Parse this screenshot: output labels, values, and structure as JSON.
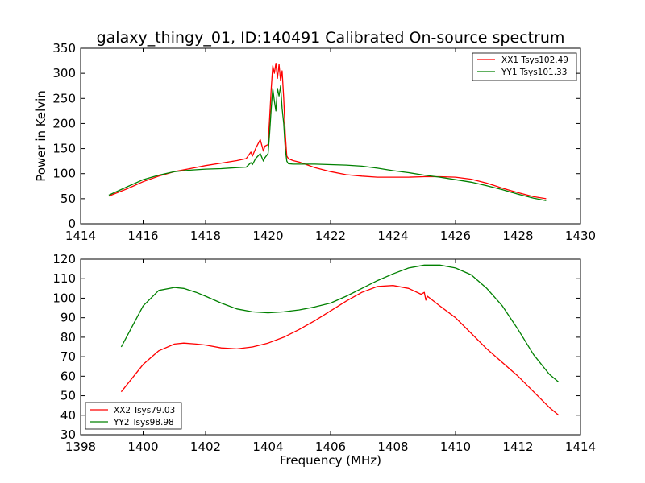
{
  "chart_data": [
    {
      "type": "line",
      "title": "galaxy_thingy_01, ID:140491 Calibrated On-source spectrum",
      "xlabel": "",
      "ylabel": "Power in Kelvin",
      "xlim": [
        1414,
        1430
      ],
      "ylim": [
        0,
        350
      ],
      "xticks": [
        1414,
        1416,
        1418,
        1420,
        1422,
        1424,
        1426,
        1428,
        1430
      ],
      "yticks": [
        0,
        50,
        100,
        150,
        200,
        250,
        300,
        350
      ],
      "legend_position": "top-right",
      "series": [
        {
          "name": "XX1 Tsys102.49",
          "color": "#ff0000",
          "x": [
            1414.9,
            1415.5,
            1416.0,
            1416.5,
            1417.0,
            1417.5,
            1418.0,
            1418.5,
            1419.0,
            1419.3,
            1419.45,
            1419.5,
            1419.6,
            1419.75,
            1419.85,
            1419.9,
            1420.0,
            1420.05,
            1420.1,
            1420.15,
            1420.2,
            1420.25,
            1420.3,
            1420.35,
            1420.4,
            1420.45,
            1420.5,
            1420.55,
            1420.6,
            1420.65,
            1420.8,
            1421.0,
            1421.5,
            1422.0,
            1422.5,
            1423.0,
            1423.5,
            1424.0,
            1424.5,
            1425.0,
            1425.5,
            1426.0,
            1426.5,
            1427.0,
            1427.5,
            1428.0,
            1428.5,
            1428.9
          ],
          "y": [
            55,
            70,
            84,
            95,
            104,
            110,
            116,
            121,
            126,
            130,
            143,
            135,
            150,
            168,
            145,
            155,
            158,
            210,
            270,
            315,
            300,
            320,
            290,
            318,
            285,
            305,
            250,
            180,
            135,
            130,
            126,
            123,
            112,
            104,
            98,
            95,
            93,
            93,
            93,
            94,
            94,
            93,
            89,
            81,
            71,
            62,
            54,
            50
          ]
        },
        {
          "name": "YY1 Tsys101.33",
          "color": "#008000",
          "x": [
            1414.9,
            1415.5,
            1416.0,
            1416.5,
            1417.0,
            1417.5,
            1418.0,
            1418.5,
            1419.0,
            1419.3,
            1419.45,
            1419.5,
            1419.6,
            1419.75,
            1419.85,
            1419.9,
            1420.0,
            1420.05,
            1420.1,
            1420.15,
            1420.2,
            1420.25,
            1420.3,
            1420.35,
            1420.4,
            1420.45,
            1420.5,
            1420.55,
            1420.6,
            1420.65,
            1420.8,
            1421.0,
            1421.5,
            1422.0,
            1422.5,
            1423.0,
            1423.5,
            1424.0,
            1424.5,
            1425.0,
            1425.5,
            1426.0,
            1426.5,
            1427.0,
            1427.5,
            1428.0,
            1428.5,
            1428.9
          ],
          "y": [
            57,
            74,
            88,
            97,
            104,
            107,
            109,
            110,
            112,
            113,
            122,
            118,
            130,
            140,
            125,
            132,
            140,
            180,
            230,
            270,
            245,
            225,
            270,
            255,
            275,
            230,
            200,
            150,
            125,
            120,
            119,
            119,
            119,
            118,
            117,
            115,
            111,
            106,
            102,
            97,
            93,
            88,
            83,
            76,
            68,
            59,
            51,
            46
          ]
        }
      ]
    },
    {
      "type": "line",
      "title": "",
      "xlabel": "Frequency (MHz)",
      "ylabel": "",
      "xlim": [
        1398,
        1414
      ],
      "ylim": [
        30,
        120
      ],
      "xticks": [
        1398,
        1400,
        1402,
        1404,
        1406,
        1408,
        1410,
        1412,
        1414
      ],
      "yticks": [
        30,
        40,
        50,
        60,
        70,
        80,
        90,
        100,
        110,
        120
      ],
      "legend_position": "bottom-left",
      "series": [
        {
          "name": "XX2 Tsys79.03",
          "color": "#ff0000",
          "x": [
            1399.3,
            1399.6,
            1400.0,
            1400.5,
            1401.0,
            1401.3,
            1401.7,
            1402.0,
            1402.5,
            1403.0,
            1403.5,
            1404.0,
            1404.5,
            1405.0,
            1405.5,
            1406.0,
            1406.5,
            1407.0,
            1407.5,
            1408.0,
            1408.5,
            1408.9,
            1409.0,
            1409.05,
            1409.1,
            1409.5,
            1410.0,
            1410.5,
            1411.0,
            1411.5,
            1412.0,
            1412.5,
            1413.0,
            1413.3
          ],
          "y": [
            52,
            58,
            66,
            73,
            76.5,
            77,
            76.5,
            76,
            74.5,
            74,
            75,
            77,
            80,
            84,
            88.5,
            93.5,
            98.5,
            103,
            106,
            106.5,
            105,
            102,
            103,
            99,
            101,
            96,
            90,
            82,
            74,
            67,
            60,
            52,
            44,
            40
          ]
        },
        {
          "name": "YY2 Tsys98.98",
          "color": "#008000",
          "x": [
            1399.3,
            1399.6,
            1400.0,
            1400.5,
            1401.0,
            1401.3,
            1401.7,
            1402.0,
            1402.5,
            1403.0,
            1403.5,
            1404.0,
            1404.5,
            1405.0,
            1405.5,
            1406.0,
            1406.5,
            1407.0,
            1407.5,
            1408.0,
            1408.5,
            1409.0,
            1409.5,
            1410.0,
            1410.5,
            1411.0,
            1411.5,
            1412.0,
            1412.5,
            1413.0,
            1413.3
          ],
          "y": [
            75,
            84,
            96,
            104,
            105.5,
            105,
            103,
            101,
            97.5,
            94.5,
            93,
            92.5,
            93,
            94,
            95.5,
            97.5,
            101,
            105,
            109,
            112.5,
            115.5,
            117,
            117,
            115.5,
            112,
            105,
            96,
            84,
            71,
            61,
            57
          ]
        }
      ]
    }
  ]
}
